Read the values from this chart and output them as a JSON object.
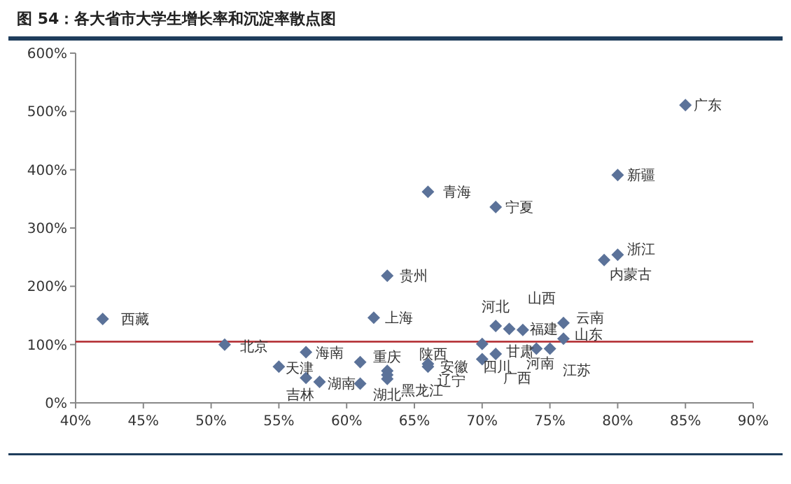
{
  "chart_data": {
    "type": "scatter",
    "title": "图 54：各大省市大学生增长率和沉淀率散点图",
    "color": "#5b7299",
    "marker": "diamond",
    "x": [
      42,
      51,
      55,
      57,
      58,
      61,
      57,
      61,
      63,
      63,
      63,
      62,
      63,
      66,
      71,
      85,
      80,
      80,
      79,
      66,
      66,
      71,
      72,
      73,
      76,
      76,
      70,
      70,
      71,
      74,
      75
    ],
    "values": [
      144,
      100,
      62,
      43,
      36,
      33,
      87,
      70,
      55,
      48,
      41,
      146,
      218,
      362,
      336,
      511,
      391,
      254,
      245,
      67,
      62,
      132,
      127,
      125,
      137,
      110,
      101,
      75,
      84,
      93,
      93
    ],
    "xlim": [
      40,
      90
    ],
    "xticks": [
      {
        "value": 40,
        "label": "40%"
      },
      {
        "value": 45,
        "label": "45%"
      },
      {
        "value": 50,
        "label": "50%"
      },
      {
        "value": 55,
        "label": "55%"
      },
      {
        "value": 60,
        "label": "60%"
      },
      {
        "value": 65,
        "label": "65%"
      },
      {
        "value": 70,
        "label": "70%"
      },
      {
        "value": 75,
        "label": "75%"
      },
      {
        "value": 80,
        "label": "80%"
      },
      {
        "value": 85,
        "label": "85%"
      },
      {
        "value": 90,
        "label": "90%"
      }
    ],
    "ylim": [
      0,
      600
    ],
    "yticks": [
      {
        "value": 0,
        "label": "0%"
      },
      {
        "value": 100,
        "label": "100%"
      },
      {
        "value": 200,
        "label": "200%"
      },
      {
        "value": 300,
        "label": "300%"
      },
      {
        "value": 400,
        "label": "400%"
      },
      {
        "value": 500,
        "label": "500%"
      },
      {
        "value": 600,
        "label": "600%"
      }
    ],
    "ref_lines": [
      {
        "axis": "y",
        "value": 105,
        "color": "#b0262b"
      }
    ],
    "grid": false,
    "annotations": [
      {
        "text": "西藏",
        "x": 42,
        "y": 144
      },
      {
        "text": "北京",
        "x": 51,
        "y": 100
      },
      {
        "text": "天津",
        "x": 55,
        "y": 62
      },
      {
        "text": "吉林",
        "x": 57,
        "y": 43
      },
      {
        "text": "海南",
        "x": 57,
        "y": 87
      },
      {
        "text": "湖南",
        "x": 58,
        "y": 36
      },
      {
        "text": "重庆",
        "x": 61,
        "y": 70
      },
      {
        "text": "湖北",
        "x": 63,
        "y": 41
      },
      {
        "text": "黑龙江",
        "x": 63,
        "y": 48
      },
      {
        "text": "陕西",
        "x": 66,
        "y": 67
      },
      {
        "text": "安徽",
        "x": 66,
        "y": 62
      },
      {
        "text": "辽宁",
        "x": 66,
        "y": 62
      },
      {
        "text": "上海",
        "x": 62,
        "y": 146
      },
      {
        "text": "贵州",
        "x": 63,
        "y": 218
      },
      {
        "text": "青海",
        "x": 66,
        "y": 362
      },
      {
        "text": "宁夏",
        "x": 71,
        "y": 336
      },
      {
        "text": "广东",
        "x": 85,
        "y": 511
      },
      {
        "text": "新疆",
        "x": 80,
        "y": 391
      },
      {
        "text": "浙江",
        "x": 80,
        "y": 254
      },
      {
        "text": "内蒙古",
        "x": 79,
        "y": 245
      },
      {
        "text": "河北",
        "x": 71,
        "y": 132
      },
      {
        "text": "山西",
        "x": 72,
        "y": 127
      },
      {
        "text": "福建",
        "x": 73,
        "y": 125
      },
      {
        "text": "云南",
        "x": 76,
        "y": 137
      },
      {
        "text": "山东",
        "x": 76,
        "y": 110
      },
      {
        "text": "甘肃",
        "x": 70,
        "y": 101
      },
      {
        "text": "四川",
        "x": 71,
        "y": 84
      },
      {
        "text": "河南",
        "x": 74,
        "y": 93
      },
      {
        "text": "江苏",
        "x": 75,
        "y": 93
      },
      {
        "text": "广西",
        "x": 70,
        "y": 75
      }
    ]
  }
}
